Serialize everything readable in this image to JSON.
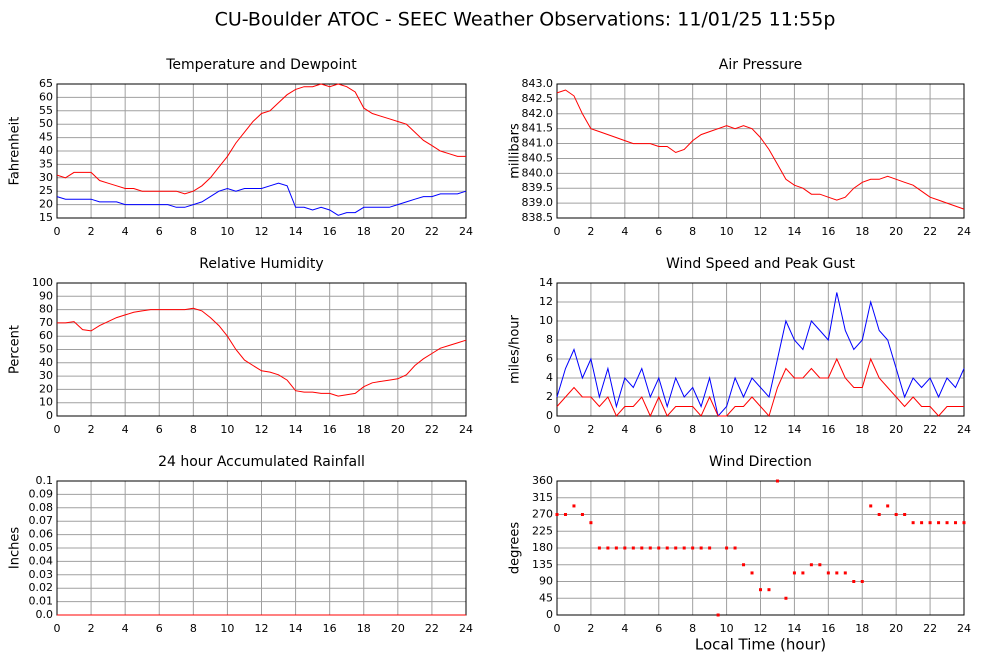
{
  "title": "CU-Boulder ATOC - SEEC Weather Observations: 11/01/25 11:55p",
  "chart_data": [
    {
      "type": "line",
      "title": "Temperature and Dewpoint",
      "ylabel": "Fahrenheit",
      "x": [
        0,
        0.5,
        1,
        1.5,
        2,
        2.5,
        3,
        3.5,
        4,
        4.5,
        5,
        5.5,
        6,
        6.5,
        7,
        7.5,
        8,
        8.5,
        9,
        9.5,
        10,
        10.5,
        11,
        11.5,
        12,
        12.5,
        13,
        13.5,
        14,
        14.5,
        15,
        15.5,
        16,
        16.5,
        17,
        17.5,
        18,
        18.5,
        19,
        19.5,
        20,
        20.5,
        21,
        21.5,
        22,
        22.5,
        23,
        23.5,
        24
      ],
      "series": [
        {
          "color": "#ff0000",
          "values": [
            31,
            30,
            32,
            32,
            32,
            29,
            28,
            27,
            26,
            26,
            25,
            25,
            25,
            25,
            25,
            24,
            25,
            27,
            30,
            34,
            38,
            43,
            47,
            51,
            54,
            55,
            58,
            61,
            63,
            64,
            64,
            65,
            64,
            65,
            64,
            62,
            56,
            54,
            53,
            52,
            51,
            50,
            47,
            44,
            42,
            40,
            39,
            38,
            38
          ]
        },
        {
          "color": "#0000ff",
          "values": [
            23,
            22,
            22,
            22,
            22,
            21,
            21,
            21,
            20,
            20,
            20,
            20,
            20,
            20,
            19,
            19,
            20,
            21,
            23,
            25,
            26,
            25,
            26,
            26,
            26,
            27,
            28,
            27,
            19,
            19,
            18,
            19,
            18,
            16,
            17,
            17,
            19,
            19,
            19,
            19,
            20,
            21,
            22,
            23,
            23,
            24,
            24,
            24,
            25
          ]
        }
      ],
      "xlim": [
        0,
        24
      ],
      "xticks": [
        0,
        2,
        4,
        6,
        8,
        10,
        12,
        14,
        16,
        18,
        20,
        22,
        24
      ],
      "ylim": [
        15,
        65
      ],
      "yticks": [
        15,
        20,
        25,
        30,
        35,
        40,
        45,
        50,
        55,
        60,
        65
      ],
      "grid": true
    },
    {
      "type": "line",
      "title": "Air Pressure",
      "ylabel": "millibars",
      "x": [
        0,
        0.5,
        1,
        1.5,
        2,
        2.5,
        3,
        3.5,
        4,
        4.5,
        5,
        5.5,
        6,
        6.5,
        7,
        7.5,
        8,
        8.5,
        9,
        9.5,
        10,
        10.5,
        11,
        11.5,
        12,
        12.5,
        13,
        13.5,
        14,
        14.5,
        15,
        15.5,
        16,
        16.5,
        17,
        17.5,
        18,
        18.5,
        19,
        19.5,
        20,
        20.5,
        21,
        21.5,
        22,
        22.5,
        23,
        23.5,
        24
      ],
      "series": [
        {
          "color": "#ff0000",
          "values": [
            842.7,
            842.8,
            842.6,
            842.0,
            841.5,
            841.4,
            841.3,
            841.2,
            841.1,
            841.0,
            841.0,
            841.0,
            840.9,
            840.9,
            840.7,
            840.8,
            841.1,
            841.3,
            841.4,
            841.5,
            841.6,
            841.5,
            841.6,
            841.5,
            841.2,
            840.8,
            840.3,
            839.8,
            839.6,
            839.5,
            839.3,
            839.3,
            839.2,
            839.1,
            839.2,
            839.5,
            839.7,
            839.8,
            839.8,
            839.9,
            839.8,
            839.7,
            839.6,
            839.4,
            839.2,
            839.1,
            839.0,
            838.9,
            838.8
          ]
        }
      ],
      "xlim": [
        0,
        24
      ],
      "xticks": [
        0,
        2,
        4,
        6,
        8,
        10,
        12,
        14,
        16,
        18,
        20,
        22,
        24
      ],
      "ylim": [
        838.5,
        843
      ],
      "yticks": [
        838.5,
        {
          "value": 839,
          "label": "839.0"
        },
        839.5,
        {
          "value": 840,
          "label": "840.0"
        },
        840.5,
        {
          "value": 841,
          "label": "841.0"
        },
        841.5,
        {
          "value": 842,
          "label": "842.0"
        },
        842.5,
        {
          "value": 843,
          "label": "843.0"
        }
      ],
      "grid": true
    },
    {
      "type": "line",
      "title": "Relative Humidity",
      "ylabel": "Percent",
      "x": [
        0,
        0.5,
        1,
        1.5,
        2,
        2.5,
        3,
        3.5,
        4,
        4.5,
        5,
        5.5,
        6,
        6.5,
        7,
        7.5,
        8,
        8.5,
        9,
        9.5,
        10,
        10.5,
        11,
        11.5,
        12,
        12.5,
        13,
        13.5,
        14,
        14.5,
        15,
        15.5,
        16,
        16.5,
        17,
        17.5,
        18,
        18.5,
        19,
        19.5,
        20,
        20.5,
        21,
        21.5,
        22,
        22.5,
        23,
        23.5,
        24
      ],
      "series": [
        {
          "color": "#ff0000",
          "values": [
            70,
            70,
            71,
            65,
            64,
            68,
            71,
            74,
            76,
            78,
            79,
            80,
            80,
            80,
            80,
            80,
            81,
            79,
            74,
            68,
            60,
            50,
            42,
            38,
            34,
            33,
            31,
            27,
            19,
            18,
            18,
            17,
            17,
            15,
            16,
            17,
            22,
            25,
            26,
            27,
            28,
            31,
            38,
            43,
            47,
            51,
            53,
            55,
            57
          ]
        }
      ],
      "xlim": [
        0,
        24
      ],
      "xticks": [
        0,
        2,
        4,
        6,
        8,
        10,
        12,
        14,
        16,
        18,
        20,
        22,
        24
      ],
      "ylim": [
        0,
        100
      ],
      "yticks": [
        0,
        10,
        20,
        30,
        40,
        50,
        60,
        70,
        80,
        90,
        100
      ],
      "grid": true
    },
    {
      "type": "line",
      "title": "Wind Speed and Peak Gust",
      "ylabel": "miles/hour",
      "x": [
        0,
        0.5,
        1,
        1.5,
        2,
        2.5,
        3,
        3.5,
        4,
        4.5,
        5,
        5.5,
        6,
        6.5,
        7,
        7.5,
        8,
        8.5,
        9,
        9.5,
        10,
        10.5,
        11,
        11.5,
        12,
        12.5,
        13,
        13.5,
        14,
        14.5,
        15,
        15.5,
        16,
        16.5,
        17,
        17.5,
        18,
        18.5,
        19,
        19.5,
        20,
        20.5,
        21,
        21.5,
        22,
        22.5,
        23,
        23.5,
        24
      ],
      "series": [
        {
          "color": "#0000ff",
          "values": [
            2,
            5,
            7,
            4,
            6,
            2,
            5,
            1,
            4,
            3,
            5,
            2,
            4,
            1,
            4,
            2,
            3,
            1,
            4,
            0,
            1,
            4,
            2,
            4,
            3,
            2,
            6,
            10,
            8,
            7,
            10,
            9,
            8,
            13,
            9,
            7,
            8,
            12,
            9,
            8,
            5,
            2,
            4,
            3,
            4,
            2,
            4,
            3,
            5
          ]
        },
        {
          "color": "#ff0000",
          "values": [
            1,
            2,
            3,
            2,
            2,
            1,
            2,
            0,
            1,
            1,
            2,
            0,
            2,
            0,
            1,
            1,
            1,
            0,
            2,
            0,
            0,
            1,
            1,
            2,
            1,
            0,
            3,
            5,
            4,
            4,
            5,
            4,
            4,
            6,
            4,
            3,
            3,
            6,
            4,
            3,
            2,
            1,
            2,
            1,
            1,
            0,
            1,
            1,
            1
          ]
        }
      ],
      "xlim": [
        0,
        24
      ],
      "xticks": [
        0,
        2,
        4,
        6,
        8,
        10,
        12,
        14,
        16,
        18,
        20,
        22,
        24
      ],
      "ylim": [
        0,
        14
      ],
      "yticks": [
        0,
        2,
        4,
        6,
        8,
        10,
        12,
        14
      ],
      "grid": true
    },
    {
      "type": "line",
      "title": "24 hour Accumulated Rainfall",
      "ylabel": "Inches",
      "x": [
        0,
        0.5,
        1,
        1.5,
        2,
        2.5,
        3,
        3.5,
        4,
        4.5,
        5,
        5.5,
        6,
        6.5,
        7,
        7.5,
        8,
        8.5,
        9,
        9.5,
        10,
        10.5,
        11,
        11.5,
        12,
        12.5,
        13,
        13.5,
        14,
        14.5,
        15,
        15.5,
        16,
        16.5,
        17,
        17.5,
        18,
        18.5,
        19,
        19.5,
        20,
        20.5,
        21,
        21.5,
        22,
        22.5,
        23,
        23.5,
        24
      ],
      "series": [
        {
          "color": "#ff0000",
          "values": [
            0,
            0,
            0,
            0,
            0,
            0,
            0,
            0,
            0,
            0,
            0,
            0,
            0,
            0,
            0,
            0,
            0,
            0,
            0,
            0,
            0,
            0,
            0,
            0,
            0,
            0,
            0,
            0,
            0,
            0,
            0,
            0,
            0,
            0,
            0,
            0,
            0,
            0,
            0,
            0,
            0,
            0,
            0,
            0,
            0,
            0,
            0,
            0,
            0
          ]
        }
      ],
      "xlim": [
        0,
        24
      ],
      "xticks": [
        0,
        2,
        4,
        6,
        8,
        10,
        12,
        14,
        16,
        18,
        20,
        22,
        24
      ],
      "ylim": [
        0,
        0.1
      ],
      "yticks": [
        {
          "value": 0,
          "label": "0.0"
        },
        0.01,
        0.02,
        0.03,
        0.04,
        0.05,
        0.06,
        0.07,
        0.08,
        0.09,
        0.1
      ],
      "grid": true
    },
    {
      "type": "scatter",
      "title": "Wind Direction",
      "ylabel": "degrees",
      "xlabel": "Local Time (hour)",
      "x": [
        0,
        0.5,
        1,
        1.5,
        2,
        2.5,
        3,
        3.5,
        4,
        4.5,
        5,
        5.5,
        6,
        6.5,
        7,
        7.5,
        8,
        8.5,
        9,
        9.5,
        10,
        10.5,
        11,
        11.5,
        12,
        12.5,
        13,
        13.5,
        14,
        14.5,
        15,
        15.5,
        16,
        16.5,
        17,
        17.5,
        18,
        18.5,
        19,
        19.5,
        20,
        20.5,
        21,
        21.5,
        22,
        22.5,
        23,
        23.5,
        24
      ],
      "series": [
        {
          "color": "#ff0000",
          "values": [
            270,
            270,
            293,
            270,
            248,
            180,
            180,
            180,
            180,
            180,
            180,
            180,
            180,
            180,
            180,
            180,
            180,
            180,
            180,
            0,
            180,
            180,
            135,
            113,
            68,
            68,
            360,
            45,
            113,
            113,
            135,
            135,
            113,
            113,
            113,
            90,
            90,
            293,
            270,
            293,
            270,
            270,
            248,
            248,
            248,
            248,
            248,
            248,
            248
          ]
        }
      ],
      "xlim": [
        0,
        24
      ],
      "xticks": [
        0,
        2,
        4,
        6,
        8,
        10,
        12,
        14,
        16,
        18,
        20,
        22,
        24
      ],
      "ylim": [
        0,
        360
      ],
      "yticks": [
        0,
        45,
        90,
        135,
        180,
        225,
        270,
        315,
        360
      ],
      "grid": true
    }
  ]
}
